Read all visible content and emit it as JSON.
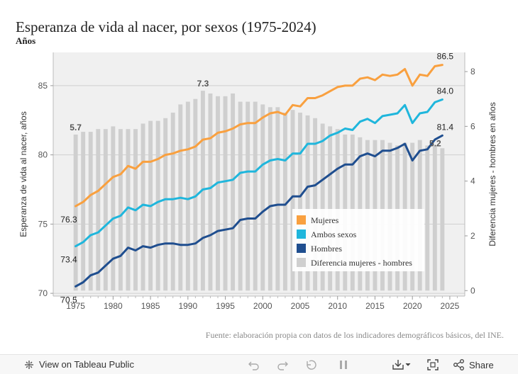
{
  "title": "Esperanza de vida al nacer, por sexos (1975-2024)",
  "subtitle": "Años",
  "source": "Fuente: elaboración propia con datos de los indicadores demográficos básicos, del INE.",
  "footer": {
    "view_label": "View on Tableau Public",
    "share_label": "Share"
  },
  "colors": {
    "mujeres": "#f9a03f",
    "ambos": "#1fb6dc",
    "hombres": "#1f4e8f",
    "bars": "#cfcfcf",
    "plot_bg": "#f0f0f0"
  },
  "chart_data": {
    "type": "line",
    "title": "Esperanza de vida al nacer, por sexos (1975-2024)",
    "ylabel": "Esperanza de vida al nacer, años",
    "y2label": "Diferencia mujeres - hombres en años",
    "x": [
      1975,
      1976,
      1977,
      1978,
      1979,
      1980,
      1981,
      1982,
      1983,
      1984,
      1985,
      1986,
      1987,
      1988,
      1989,
      1990,
      1991,
      1992,
      1993,
      1994,
      1995,
      1996,
      1997,
      1998,
      1999,
      2000,
      2001,
      2002,
      2003,
      2004,
      2005,
      2006,
      2007,
      2008,
      2009,
      2010,
      2011,
      2012,
      2013,
      2014,
      2015,
      2016,
      2017,
      2018,
      2019,
      2020,
      2021,
      2022,
      2023,
      2024
    ],
    "xlim": [
      1972,
      2027
    ],
    "xticks": [
      1975,
      1980,
      1985,
      1990,
      1995,
      2000,
      2005,
      2010,
      2015,
      2020,
      2025
    ],
    "ylim": [
      69.8,
      87.4
    ],
    "yticks": [
      70,
      75,
      80,
      85
    ],
    "y2lim": [
      -0.2,
      8.7
    ],
    "y2ticks": [
      0,
      2,
      4,
      6,
      8
    ],
    "series": [
      {
        "name": "Mujeres",
        "axis": "left",
        "values": [
          76.3,
          76.6,
          77.1,
          77.4,
          77.9,
          78.4,
          78.6,
          79.2,
          79.0,
          79.5,
          79.5,
          79.7,
          80.0,
          80.1,
          80.3,
          80.4,
          80.6,
          81.1,
          81.2,
          81.6,
          81.7,
          81.9,
          82.2,
          82.3,
          82.3,
          82.7,
          83.0,
          83.1,
          82.9,
          83.6,
          83.5,
          84.1,
          84.1,
          84.3,
          84.6,
          84.9,
          85.0,
          85.0,
          85.5,
          85.6,
          85.4,
          85.8,
          85.7,
          85.8,
          86.2,
          85.0,
          85.8,
          85.7,
          86.4,
          86.5
        ]
      },
      {
        "name": "Ambos sexos",
        "axis": "left",
        "values": [
          73.4,
          73.7,
          74.2,
          74.4,
          74.9,
          75.4,
          75.6,
          76.2,
          76.0,
          76.4,
          76.3,
          76.6,
          76.8,
          76.8,
          76.9,
          76.8,
          77.0,
          77.5,
          77.6,
          78.0,
          78.1,
          78.2,
          78.7,
          78.8,
          78.8,
          79.3,
          79.6,
          79.7,
          79.6,
          80.1,
          80.1,
          80.8,
          80.8,
          81.0,
          81.4,
          81.6,
          81.9,
          81.8,
          82.4,
          82.6,
          82.3,
          82.8,
          82.9,
          83.0,
          83.6,
          82.3,
          83.0,
          83.1,
          83.8,
          84.0
        ]
      },
      {
        "name": "Hombres",
        "axis": "left",
        "values": [
          70.5,
          70.8,
          71.3,
          71.5,
          72.0,
          72.5,
          72.7,
          73.3,
          73.1,
          73.4,
          73.3,
          73.5,
          73.6,
          73.6,
          73.5,
          73.5,
          73.6,
          74.0,
          74.2,
          74.5,
          74.6,
          74.7,
          75.3,
          75.4,
          75.4,
          75.9,
          76.3,
          76.4,
          76.4,
          77.0,
          77.0,
          77.7,
          77.8,
          78.2,
          78.6,
          79.0,
          79.3,
          79.3,
          79.9,
          80.1,
          79.9,
          80.3,
          80.3,
          80.5,
          80.8,
          79.6,
          80.3,
          80.4,
          81.1,
          81.4
        ]
      },
      {
        "name": "Diferencia mujeres - hombres",
        "axis": "right",
        "type": "bar",
        "values": [
          5.7,
          5.8,
          5.8,
          5.9,
          5.9,
          6.0,
          5.9,
          5.9,
          5.9,
          6.1,
          6.2,
          6.2,
          6.3,
          6.5,
          6.8,
          6.9,
          7.0,
          7.3,
          7.2,
          7.1,
          7.1,
          7.2,
          6.9,
          6.9,
          6.9,
          6.8,
          6.7,
          6.7,
          6.5,
          6.6,
          6.5,
          6.4,
          6.3,
          6.1,
          6.0,
          5.9,
          5.7,
          5.7,
          5.6,
          5.5,
          5.5,
          5.5,
          5.4,
          5.3,
          5.4,
          5.4,
          5.5,
          5.3,
          5.3,
          5.2
        ]
      }
    ],
    "point_labels": [
      {
        "series": "Mujeres",
        "year": 1975,
        "text": "76.3"
      },
      {
        "series": "Mujeres",
        "year": 2024,
        "text": "86.5"
      },
      {
        "series": "Ambos sexos",
        "year": 1975,
        "text": "73.4"
      },
      {
        "series": "Ambos sexos",
        "year": 2024,
        "text": "84.0"
      },
      {
        "series": "Hombres",
        "year": 1975,
        "text": "70.5"
      },
      {
        "series": "Hombres",
        "year": 2024,
        "text": "81.4"
      },
      {
        "series": "Diferencia mujeres - hombres",
        "year": 1975,
        "text": "5.7"
      },
      {
        "series": "Diferencia mujeres - hombres",
        "year": 1992,
        "text": "7.3"
      },
      {
        "series": "Diferencia mujeres - hombres",
        "year": 2024,
        "text": "5.2"
      }
    ],
    "legend": {
      "placement": "inside-lower-right",
      "items": [
        {
          "label": "Mujeres",
          "color": "#f9a03f"
        },
        {
          "label": "Ambos sexos",
          "color": "#1fb6dc"
        },
        {
          "label": "Hombres",
          "color": "#1f4e8f"
        },
        {
          "label": "Diferencia mujeres - hombres",
          "color": "#cfcfcf"
        }
      ]
    }
  }
}
